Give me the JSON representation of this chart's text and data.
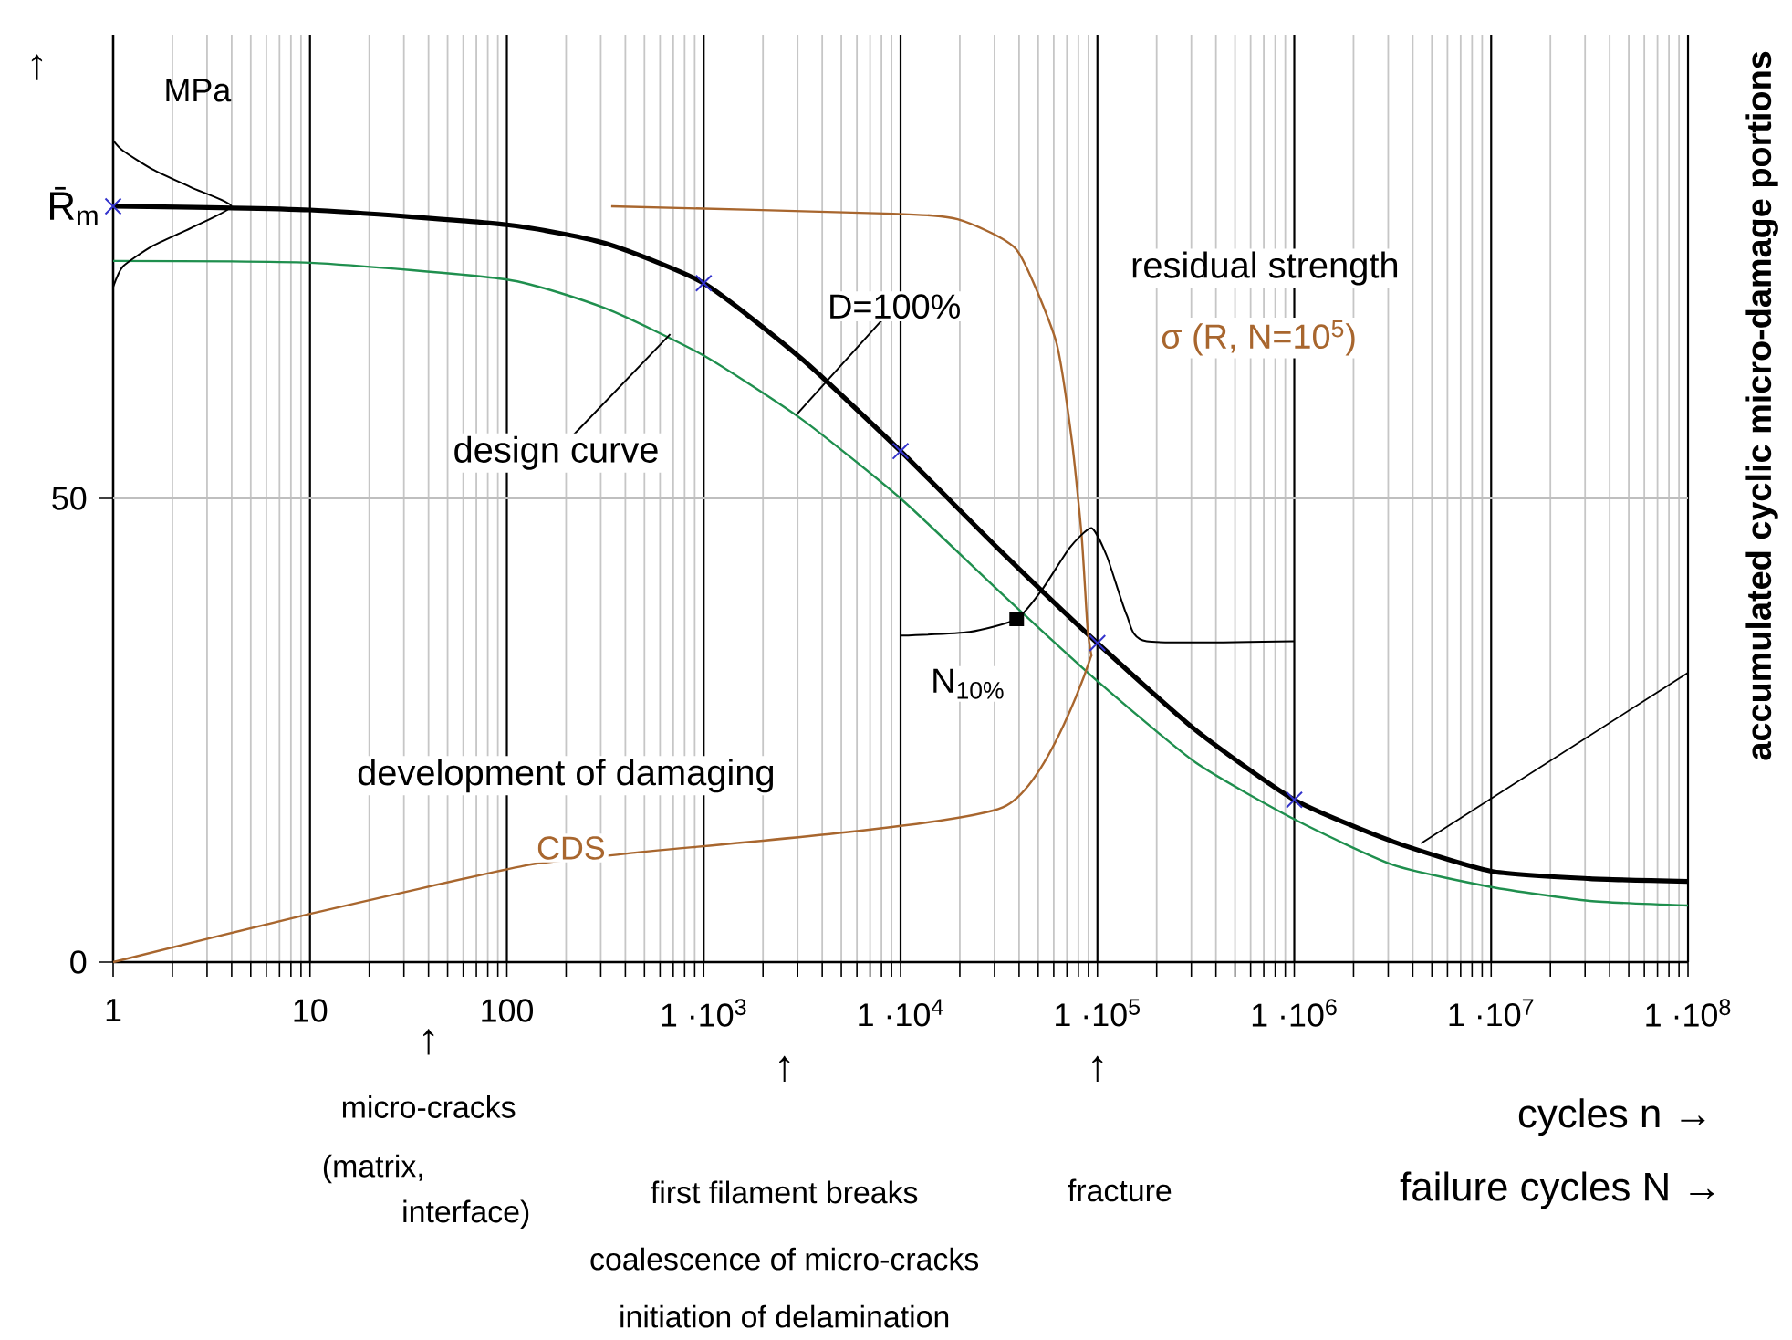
{
  "chart_data": {
    "type": "line",
    "log": "x",
    "grid": "x",
    "ref_lines": [
      {
        "axis": "y",
        "value": 50,
        "color": "#bfbfbf"
      }
    ],
    "xlabel": "cycles n →",
    "ylabel": "MPa",
    "y2label": "accumulated cyclic micro-damage portions",
    "xlim": [
      1,
      100000000
    ],
    "ylim": [
      0,
      100
    ],
    "xticks": [
      1,
      10,
      100,
      {
        "value": 1000,
        "label": "1 ·10$^{3}$"
      },
      {
        "value": 10000,
        "label": "1 ·10$^{4}$"
      },
      {
        "value": 100000,
        "label": "1 ·10$^{5}$"
      },
      {
        "value": 1000000,
        "label": "1 ·10$^{6}$"
      },
      {
        "value": 10000000,
        "label": "1 ·10$^{7}$"
      },
      {
        "value": 100000000,
        "label": "1 ·10$^{8}$"
      }
    ],
    "yticks": [
      0,
      50
    ],
    "series": [
      {
        "type": "line",
        "color": "#000000",
        "x": [
          1,
          10,
          100,
          316,
          1000,
          3162,
          10000,
          31623,
          100000,
          316228,
          1000000,
          3162278,
          10000000,
          31622777,
          100000000
        ],
        "values": [
          81.5,
          81.1,
          79.5,
          77.5,
          73.2,
          65,
          55.1,
          44.5,
          34.4,
          25,
          17.5,
          13,
          9.8,
          9.0,
          8.7
        ]
      },
      {
        "type": "line",
        "color": "#1f8f4e",
        "x": [
          1,
          10,
          100,
          316,
          1000,
          3162,
          10000,
          31623,
          100000,
          316228,
          1000000,
          3162278,
          10000000,
          31622777,
          100000000
        ],
        "values": [
          75.6,
          75.4,
          73.6,
          70.5,
          65.4,
          58.5,
          50,
          40,
          30.3,
          21.5,
          15.4,
          10.5,
          8.1,
          6.6,
          6.1
        ]
      },
      {
        "type": "line",
        "color": "#a8662e",
        "x": [
          339,
          9120,
          19500,
          38900,
          61700,
          74100,
          83200,
          89100,
          93300
        ],
        "values": [
          81.5,
          80.7,
          80.1,
          76.8,
          66.9,
          56.3,
          45.9,
          36,
          33
        ]
      },
      {
        "type": "line",
        "color": "#a8662e",
        "x": [
          1,
          10,
          123,
          407,
          33100,
          93300
        ],
        "values": [
          0,
          5.2,
          10.4,
          11.7,
          16.7,
          33.1
        ]
      },
      {
        "type": "line",
        "color": "#000000",
        "x": [
          1,
          1.12,
          1.58,
          2.51,
          3.98,
          2.51,
          1.58,
          1.12,
          1
        ],
        "values": [
          88.6,
          87.5,
          85.5,
          83.5,
          81.5,
          79.2,
          77.2,
          75,
          72.8
        ]
      },
      {
        "type": "line",
        "color": "#000000",
        "x": [
          10000,
          22400,
          38900,
          52500,
          72400,
          93300,
          112000,
          141000,
          178000,
          1000000
        ],
        "values": [
          35.2,
          35.6,
          37,
          40.2,
          44.7,
          46.8,
          43.7,
          37.4,
          34.6,
          34.6
        ]
      },
      {
        "type": "line",
        "color": "#000000",
        "x": [
          4400000,
          100000000
        ],
        "values": [
          12.8,
          31.2
        ]
      },
      {
        "type": "scatter",
        "marker": "square",
        "color": "#000000",
        "x": [
          38900
        ],
        "values": [
          37
        ]
      },
      {
        "type": "scatter",
        "marker": "cross",
        "color": "#3333cc",
        "x": [
          1,
          1000,
          10000,
          100000,
          1000000
        ],
        "values": [
          81.5,
          73.2,
          55.1,
          34.4,
          17.5
        ]
      }
    ],
    "annotations": [
      "↑",
      "R̄$_{m}$",
      {
        "text": "design curve",
        "x": 676,
        "y": 67.7
      },
      {
        "text": "D=100%",
        "x": 2950,
        "y": 59
      },
      "residual strength",
      "σ (R, N=10$^{5}$)",
      "N$_{10%}$",
      "development of damaging",
      "CDS",
      "↑",
      "micro-cracks",
      "(matrix,",
      "interface)",
      "↑",
      "first filament breaks",
      "coalescence of micro-cracks",
      "initiation of delamination",
      "↑",
      "fracture",
      "failure cycles N →"
    ]
  }
}
